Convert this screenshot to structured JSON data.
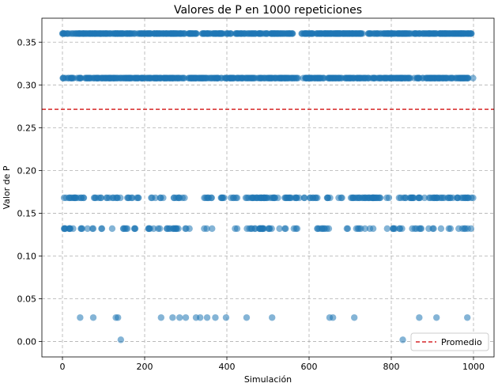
{
  "chart_data": {
    "type": "scatter",
    "title": "Valores de P en 1000 repeticiones",
    "xlabel": "Simulación",
    "ylabel": "Valor de P",
    "xlim": [
      -50,
      1050
    ],
    "ylim": [
      -0.018,
      0.378
    ],
    "x_ticks": [
      0,
      200,
      400,
      600,
      800,
      1000
    ],
    "y_ticks": [
      0.0,
      0.05,
      0.1,
      0.15,
      0.2,
      0.25,
      0.3,
      0.35
    ],
    "x_tick_labels": [
      "0",
      "200",
      "400",
      "600",
      "800",
      "1000"
    ],
    "y_tick_labels": [
      "0.00",
      "0.05",
      "0.10",
      "0.15",
      "0.20",
      "0.25",
      "0.30",
      "0.35"
    ],
    "grid": true,
    "point_color": "#1f77b4",
    "mean_line": {
      "value": 0.2715,
      "color": "#d62728",
      "style": "dashed"
    },
    "legend": {
      "position": "lower-right",
      "entries": [
        "Promedio"
      ]
    },
    "p_levels": [
      0.002,
      0.028,
      0.132,
      0.168,
      0.308,
      0.36
    ],
    "series": [
      {
        "values": [
          {
            "x": 142,
            "y": 0.002
          },
          {
            "x": 828,
            "y": 0.002
          },
          {
            "x": 43,
            "y": 0.028
          },
          {
            "x": 75,
            "y": 0.028
          },
          {
            "x": 130,
            "y": 0.028
          },
          {
            "x": 135,
            "y": 0.028
          },
          {
            "x": 240,
            "y": 0.028
          },
          {
            "x": 268,
            "y": 0.028
          },
          {
            "x": 285,
            "y": 0.028
          },
          {
            "x": 300,
            "y": 0.028
          },
          {
            "x": 325,
            "y": 0.028
          },
          {
            "x": 335,
            "y": 0.028
          },
          {
            "x": 352,
            "y": 0.028
          },
          {
            "x": 372,
            "y": 0.028
          },
          {
            "x": 398,
            "y": 0.028
          },
          {
            "x": 448,
            "y": 0.028
          },
          {
            "x": 510,
            "y": 0.028
          },
          {
            "x": 650,
            "y": 0.028
          },
          {
            "x": 658,
            "y": 0.028
          },
          {
            "x": 710,
            "y": 0.028
          },
          {
            "x": 868,
            "y": 0.028
          },
          {
            "x": 910,
            "y": 0.028
          },
          {
            "x": 985,
            "y": 0.028
          }
        ]
      }
    ]
  }
}
